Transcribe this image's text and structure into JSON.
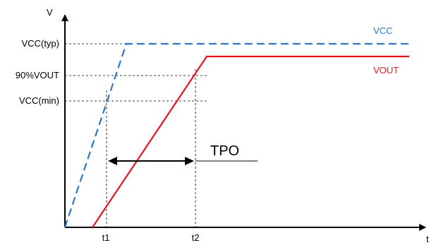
{
  "axes": {
    "y_label": "V",
    "x_label": "t"
  },
  "y_ticks": {
    "vcc_typ": "VCC(typ)",
    "vout_90": "90%VOUT",
    "vcc_min": "VCC(min)"
  },
  "x_ticks": {
    "t1": "t1",
    "t2": "t2"
  },
  "series": {
    "vcc": {
      "name": "VCC",
      "color": "#2f77c0"
    },
    "vout": {
      "name": "VOUT",
      "color": "#e8141c"
    }
  },
  "annotation": {
    "tpo": "TPO"
  }
}
